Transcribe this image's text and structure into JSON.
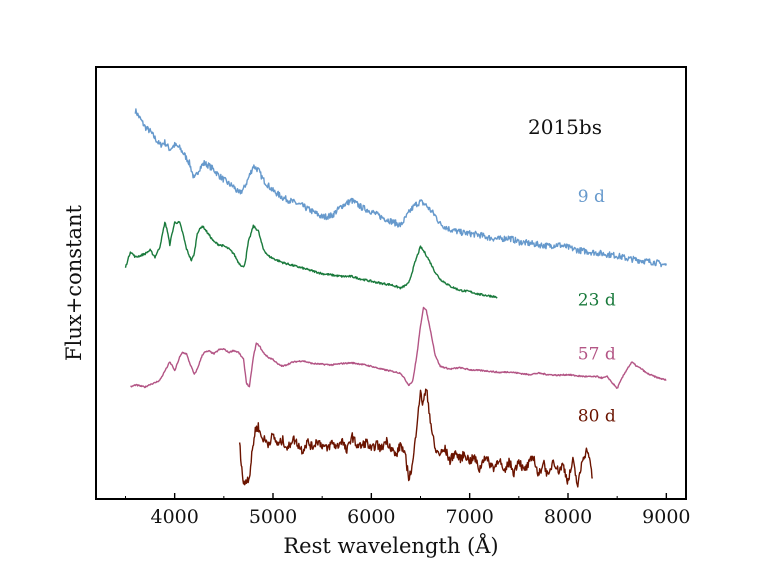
{
  "chart_data": {
    "type": "line",
    "title": "",
    "annotation": "2015bs",
    "xlabel": "Rest wavelength (Å)",
    "ylabel": "Flux+constant",
    "xlim": [
      3200,
      9200
    ],
    "ylim": [
      -0.5,
      5.75
    ],
    "xticks": [
      "4000",
      "5000",
      "6000",
      "7000",
      "8000",
      "9000"
    ],
    "yticks_shown": false,
    "grid": false,
    "legend": "none",
    "series": [
      {
        "name": "9 d",
        "color": "#6699cc",
        "label_pos": [
          8100,
          3.8
        ],
        "x": [
          3600,
          3650,
          3700,
          3750,
          3800,
          3850,
          3900,
          3950,
          4000,
          4050,
          4100,
          4150,
          4200,
          4250,
          4300,
          4350,
          4400,
          4450,
          4500,
          4550,
          4600,
          4650,
          4700,
          4750,
          4800,
          4850,
          4900,
          4950,
          5000,
          5100,
          5200,
          5300,
          5400,
          5500,
          5600,
          5700,
          5800,
          5900,
          6000,
          6100,
          6200,
          6300,
          6400,
          6450,
          6500,
          6550,
          6600,
          6650,
          6700,
          6800,
          6900,
          7000,
          7100,
          7200,
          7300,
          7400,
          7500,
          7600,
          7700,
          7800,
          7900,
          8000,
          8100,
          8200,
          8300,
          8400,
          8500,
          8600,
          8700,
          8800,
          8900,
          9000
        ],
        "y": [
          5.12,
          5.0,
          4.88,
          4.82,
          4.72,
          4.62,
          4.66,
          4.56,
          4.62,
          4.58,
          4.48,
          4.36,
          4.12,
          4.28,
          4.36,
          4.32,
          4.26,
          4.18,
          4.12,
          4.06,
          4.02,
          3.92,
          3.98,
          4.14,
          4.32,
          4.26,
          4.12,
          4.04,
          3.96,
          3.86,
          3.8,
          3.74,
          3.66,
          3.58,
          3.6,
          3.74,
          3.82,
          3.72,
          3.66,
          3.58,
          3.52,
          3.46,
          3.68,
          3.76,
          3.8,
          3.76,
          3.68,
          3.6,
          3.48,
          3.4,
          3.36,
          3.34,
          3.32,
          3.28,
          3.26,
          3.28,
          3.22,
          3.2,
          3.18,
          3.16,
          3.18,
          3.14,
          3.1,
          3.08,
          3.06,
          3.04,
          3.02,
          2.98,
          2.96,
          2.94,
          2.92,
          2.88
        ]
      },
      {
        "name": "23 d",
        "color": "#1a7a3c",
        "label_pos": [
          8100,
          2.3
        ],
        "x": [
          3500,
          3550,
          3600,
          3650,
          3700,
          3750,
          3800,
          3850,
          3900,
          3920,
          3950,
          3980,
          4000,
          4050,
          4080,
          4120,
          4170,
          4200,
          4230,
          4280,
          4300,
          4350,
          4400,
          4450,
          4500,
          4550,
          4600,
          4650,
          4700,
          4720,
          4750,
          4800,
          4850,
          4900,
          4950,
          5000,
          5100,
          5200,
          5300,
          5400,
          5500,
          5600,
          5700,
          5800,
          5900,
          6000,
          6100,
          6200,
          6300,
          6380,
          6450,
          6500,
          6550,
          6600,
          6650,
          6700,
          6800,
          6900,
          7000,
          7100,
          7200,
          7280
        ],
        "y": [
          2.85,
          3.08,
          3.0,
          3.02,
          3.05,
          3.1,
          3.0,
          3.15,
          3.5,
          3.42,
          3.18,
          3.38,
          3.5,
          3.5,
          3.36,
          3.12,
          2.95,
          3.05,
          3.35,
          3.45,
          3.42,
          3.32,
          3.22,
          3.18,
          3.16,
          3.12,
          3.05,
          2.92,
          2.85,
          2.95,
          3.22,
          3.45,
          3.38,
          3.12,
          3.02,
          2.98,
          2.92,
          2.88,
          2.84,
          2.8,
          2.76,
          2.74,
          2.72,
          2.72,
          2.68,
          2.65,
          2.62,
          2.6,
          2.55,
          2.62,
          2.95,
          3.15,
          3.05,
          2.92,
          2.78,
          2.68,
          2.58,
          2.52,
          2.5,
          2.46,
          2.44,
          2.42
        ]
      },
      {
        "name": "57 d",
        "color": "#b35585",
        "label_pos": [
          8100,
          1.52
        ],
        "x": [
          3550,
          3600,
          3700,
          3750,
          3800,
          3850,
          3900,
          3950,
          3980,
          4000,
          4050,
          4080,
          4120,
          4150,
          4200,
          4230,
          4280,
          4300,
          4350,
          4400,
          4450,
          4500,
          4550,
          4600,
          4650,
          4700,
          4730,
          4760,
          4800,
          4830,
          4860,
          4900,
          4950,
          5000,
          5050,
          5100,
          5200,
          5300,
          5400,
          5500,
          5600,
          5700,
          5800,
          5900,
          6000,
          6100,
          6200,
          6300,
          6380,
          6420,
          6460,
          6500,
          6530,
          6560,
          6600,
          6650,
          6700,
          6800,
          6900,
          7000,
          7100,
          7200,
          7300,
          7400,
          7500,
          7600,
          7700,
          7800,
          7900,
          8000,
          8100,
          8200,
          8300,
          8350,
          8400,
          8450,
          8500,
          8550,
          8600,
          8650,
          8700,
          8750,
          8800,
          8900,
          9000
        ],
        "y": [
          1.12,
          1.15,
          1.12,
          1.16,
          1.18,
          1.22,
          1.35,
          1.48,
          1.42,
          1.35,
          1.55,
          1.62,
          1.6,
          1.48,
          1.3,
          1.38,
          1.58,
          1.62,
          1.64,
          1.6,
          1.66,
          1.67,
          1.62,
          1.65,
          1.62,
          1.52,
          1.18,
          1.12,
          1.55,
          1.75,
          1.72,
          1.62,
          1.55,
          1.52,
          1.45,
          1.42,
          1.48,
          1.5,
          1.46,
          1.45,
          1.44,
          1.46,
          1.47,
          1.45,
          1.42,
          1.38,
          1.35,
          1.32,
          1.15,
          1.2,
          1.55,
          2.0,
          2.28,
          2.22,
          1.95,
          1.58,
          1.42,
          1.38,
          1.4,
          1.37,
          1.36,
          1.35,
          1.33,
          1.34,
          1.32,
          1.3,
          1.32,
          1.3,
          1.29,
          1.3,
          1.28,
          1.27,
          1.27,
          1.25,
          1.27,
          1.18,
          1.1,
          1.25,
          1.38,
          1.48,
          1.42,
          1.38,
          1.32,
          1.26,
          1.22
        ]
      },
      {
        "name": "80 d",
        "color": "#6b1400",
        "label_pos": [
          8100,
          0.62
        ],
        "x": [
          4660,
          4700,
          4730,
          4760,
          4790,
          4820,
          4850,
          4880,
          4900,
          4950,
          5000,
          5050,
          5100,
          5150,
          5200,
          5250,
          5300,
          5350,
          5400,
          5450,
          5500,
          5550,
          5600,
          5650,
          5700,
          5750,
          5800,
          5850,
          5900,
          5950,
          6000,
          6050,
          6100,
          6150,
          6200,
          6250,
          6300,
          6350,
          6380,
          6400,
          6420,
          6440,
          6460,
          6480,
          6500,
          6520,
          6540,
          6560,
          6580,
          6600,
          6620,
          6650,
          6700,
          6750,
          6800,
          6850,
          6900,
          6950,
          7000,
          7050,
          7100,
          7150,
          7200,
          7250,
          7300,
          7350,
          7400,
          7450,
          7500,
          7550,
          7600,
          7650,
          7700,
          7750,
          7800,
          7850,
          7900,
          7950,
          8000,
          8050,
          8100,
          8150,
          8200,
          8250
        ],
        "y": [
          0.3,
          -0.3,
          -0.22,
          -0.18,
          0.2,
          0.5,
          0.55,
          0.4,
          0.38,
          0.3,
          0.42,
          0.28,
          0.35,
          0.22,
          0.38,
          0.3,
          0.2,
          0.33,
          0.25,
          0.35,
          0.28,
          0.22,
          0.32,
          0.25,
          0.36,
          0.18,
          0.42,
          0.28,
          0.26,
          0.33,
          0.2,
          0.3,
          0.22,
          0.35,
          0.25,
          0.12,
          0.3,
          0.08,
          -0.18,
          -0.12,
          0.0,
          0.25,
          0.55,
          0.85,
          1.02,
          0.9,
          0.98,
          1.08,
          0.88,
          0.65,
          0.45,
          0.2,
          0.15,
          0.22,
          0.05,
          0.18,
          0.08,
          0.15,
          0.05,
          0.1,
          -0.08,
          0.12,
          0.02,
          -0.05,
          0.1,
          -0.15,
          0.05,
          -0.12,
          0.08,
          -0.1,
          0.0,
          0.12,
          -0.18,
          0.05,
          -0.2,
          0.08,
          -0.1,
          0.0,
          -0.25,
          0.05,
          -0.32,
          0.1,
          0.22,
          -0.2
        ]
      }
    ]
  }
}
